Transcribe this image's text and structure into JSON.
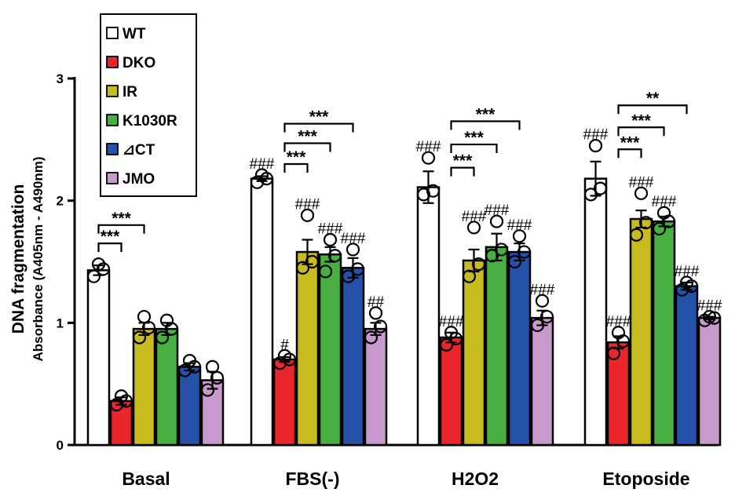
{
  "chart_data": {
    "type": "bar",
    "title": "",
    "xlabel": "",
    "ylabel": "DNA fragmentation",
    "ylabel_sub": "Absorbance (A405nm - A490nm)",
    "ylim": [
      0,
      3
    ],
    "yticks": [
      "0",
      "1",
      "2",
      "3"
    ],
    "categories": [
      "Basal",
      "FBS(-)",
      "H2O2",
      "Etoposide"
    ],
    "series": [
      {
        "name": "WT",
        "color": "#ffffff",
        "values": [
          1.43,
          2.18,
          2.11,
          2.18
        ],
        "errors": [
          0.04,
          0.02,
          0.13,
          0.14
        ],
        "points": [
          [
            1.38,
            1.44,
            1.48
          ],
          [
            2.15,
            2.18,
            2.21
          ],
          [
            2.05,
            2.08,
            2.35
          ],
          [
            2.05,
            2.1,
            2.45
          ]
        ]
      },
      {
        "name": "DKO",
        "color": "#e8262c",
        "values": [
          0.36,
          0.7,
          0.88,
          0.84
        ],
        "errors": [
          0.03,
          0.02,
          0.04,
          0.05
        ],
        "points": [
          [
            0.33,
            0.36,
            0.4
          ],
          [
            0.67,
            0.7,
            0.73
          ],
          [
            0.82,
            0.87,
            0.92
          ],
          [
            0.75,
            0.85,
            0.92
          ]
        ]
      },
      {
        "name": "IR",
        "color": "#c8bb1f",
        "values": [
          0.95,
          1.58,
          1.51,
          1.85
        ],
        "errors": [
          0.05,
          0.1,
          0.09,
          0.07
        ],
        "points": [
          [
            0.88,
            0.96,
            1.05
          ],
          [
            1.45,
            1.5,
            1.88
          ],
          [
            1.38,
            1.48,
            1.78
          ],
          [
            1.72,
            1.82,
            2.06
          ]
        ]
      },
      {
        "name": "K1030R",
        "color": "#48b043",
        "values": [
          0.95,
          1.56,
          1.62,
          1.83
        ],
        "errors": [
          0.05,
          0.06,
          0.11,
          0.04
        ],
        "points": [
          [
            0.88,
            0.95,
            1.02
          ],
          [
            1.42,
            1.55,
            1.68
          ],
          [
            1.55,
            1.6,
            1.83
          ],
          [
            1.77,
            1.83,
            1.9
          ]
        ]
      },
      {
        "name": "⊿CT",
        "color": "#2552a8",
        "values": [
          0.64,
          1.45,
          1.58,
          1.3
        ],
        "errors": [
          0.03,
          0.08,
          0.07,
          0.03
        ],
        "points": [
          [
            0.61,
            0.64,
            0.69
          ],
          [
            1.38,
            1.44,
            1.6
          ],
          [
            1.5,
            1.58,
            1.71
          ],
          [
            1.27,
            1.3,
            1.33
          ]
        ]
      },
      {
        "name": "JMO",
        "color": "#c79acb",
        "values": [
          0.53,
          0.95,
          1.04,
          1.04
        ],
        "errors": [
          0.07,
          0.05,
          0.06,
          0.01
        ],
        "points": [
          [
            0.45,
            0.55,
            0.64
          ],
          [
            0.88,
            0.97,
            1.08
          ],
          [
            0.98,
            1.05,
            1.18
          ],
          [
            1.02,
            1.04,
            1.05
          ]
        ]
      }
    ],
    "annotations": {
      "brackets": [
        {
          "category": 0,
          "from_series": 0,
          "to_series": 1,
          "level": 1.65,
          "label": "***"
        },
        {
          "category": 0,
          "from_series": 0,
          "to_series": 2,
          "level": 1.8,
          "label": "***"
        },
        {
          "category": 1,
          "from_series": 1,
          "to_series": 2,
          "level": 2.3,
          "label": "***"
        },
        {
          "category": 1,
          "from_series": 1,
          "to_series": 3,
          "level": 2.47,
          "label": "***"
        },
        {
          "category": 1,
          "from_series": 1,
          "to_series": 4,
          "level": 2.63,
          "label": "***"
        },
        {
          "category": 2,
          "from_series": 1,
          "to_series": 2,
          "level": 2.27,
          "label": "***"
        },
        {
          "category": 2,
          "from_series": 1,
          "to_series": 3,
          "level": 2.46,
          "label": "***"
        },
        {
          "category": 2,
          "from_series": 1,
          "to_series": 4,
          "level": 2.65,
          "label": "***"
        },
        {
          "category": 3,
          "from_series": 1,
          "to_series": 2,
          "level": 2.42,
          "label": "***"
        },
        {
          "category": 3,
          "from_series": 1,
          "to_series": 3,
          "level": 2.6,
          "label": "***"
        },
        {
          "category": 3,
          "from_series": 1,
          "to_series": 4,
          "level": 2.78,
          "label": "**"
        }
      ],
      "hashes": [
        {
          "category": 1,
          "series": 0,
          "label": "###"
        },
        {
          "category": 1,
          "series": 1,
          "label": "#"
        },
        {
          "category": 1,
          "series": 2,
          "label": "###"
        },
        {
          "category": 1,
          "series": 3,
          "label": "###"
        },
        {
          "category": 1,
          "series": 4,
          "label": "###"
        },
        {
          "category": 1,
          "series": 5,
          "label": "##"
        },
        {
          "category": 2,
          "series": 0,
          "label": "###"
        },
        {
          "category": 2,
          "series": 1,
          "label": "###"
        },
        {
          "category": 2,
          "series": 2,
          "label": "###"
        },
        {
          "category": 2,
          "series": 3,
          "label": "###"
        },
        {
          "category": 2,
          "series": 4,
          "label": "###"
        },
        {
          "category": 2,
          "series": 5,
          "label": "###"
        },
        {
          "category": 3,
          "series": 0,
          "label": "###"
        },
        {
          "category": 3,
          "series": 1,
          "label": "###"
        },
        {
          "category": 3,
          "series": 2,
          "label": "###"
        },
        {
          "category": 3,
          "series": 3,
          "label": "###"
        },
        {
          "category": 3,
          "series": 4,
          "label": "###"
        },
        {
          "category": 3,
          "series": 5,
          "label": "###"
        }
      ]
    },
    "legend": {
      "placement": "top-left"
    }
  }
}
